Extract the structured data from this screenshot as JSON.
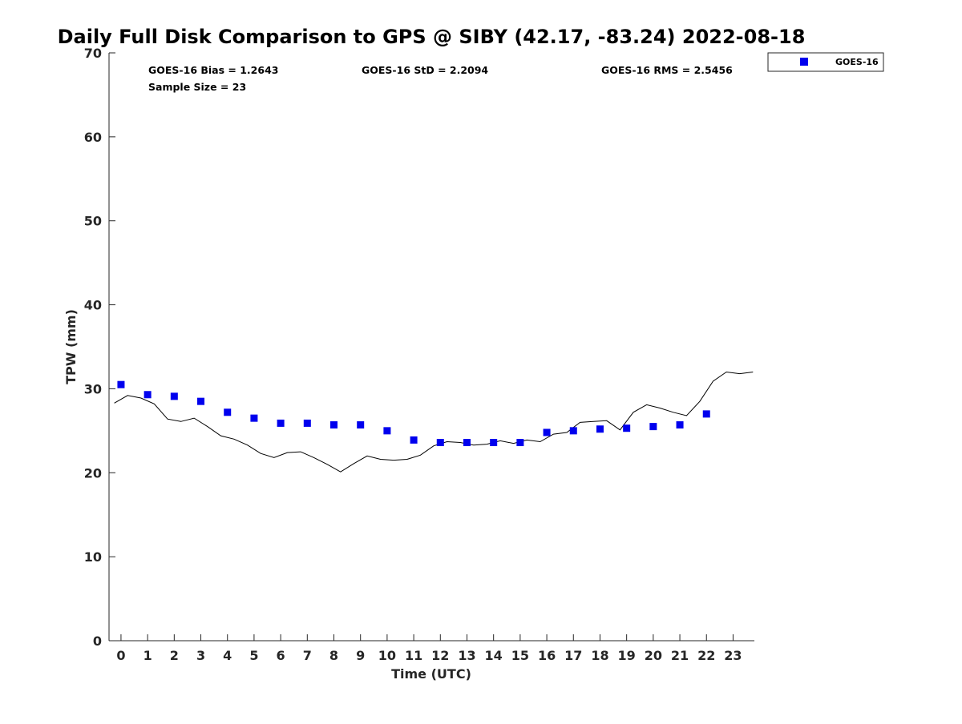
{
  "chart_data": {
    "type": "scatter",
    "title": "Daily Full Disk Comparison to GPS @ SIBY (42.17, -83.24) 2022-08-18",
    "xlabel": "Time (UTC)",
    "ylabel": "TPW (mm)",
    "xlim": [
      -0.45,
      23.8
    ],
    "ylim": [
      0,
      70
    ],
    "x_ticks": [
      0,
      1,
      2,
      3,
      4,
      5,
      6,
      7,
      8,
      9,
      10,
      11,
      12,
      13,
      14,
      15,
      16,
      17,
      18,
      19,
      20,
      21,
      22,
      23
    ],
    "y_ticks": [
      0,
      10,
      20,
      30,
      40,
      50,
      60,
      70
    ],
    "grid": false,
    "legend_position": "top-right, outside plot",
    "series": [
      {
        "name": "GOES-16",
        "marker": "square",
        "color": "#0000ee",
        "x": [
          0,
          1,
          2,
          3,
          4,
          5,
          6,
          7,
          8,
          9,
          10,
          11,
          12,
          13,
          14,
          15,
          16,
          17,
          18,
          19,
          20,
          21,
          22
        ],
        "y": [
          30.5,
          29.3,
          29.1,
          28.5,
          27.2,
          26.5,
          25.9,
          25.9,
          25.7,
          25.7,
          25.0,
          23.9,
          23.6,
          23.6,
          23.6,
          23.6,
          24.8,
          25.0,
          25.2,
          25.3,
          25.5,
          25.7,
          27.0
        ]
      },
      {
        "marker": "line",
        "color": "#000000",
        "x": [
          -0.25,
          0.25,
          0.75,
          1.25,
          1.75,
          2.25,
          2.75,
          3.25,
          3.75,
          4.25,
          4.75,
          5.25,
          5.75,
          6.25,
          6.75,
          7.25,
          7.75,
          8.25,
          8.75,
          9.25,
          9.75,
          10.25,
          10.75,
          11.25,
          11.75,
          12.25,
          12.75,
          13.25,
          13.75,
          14.25,
          14.75,
          15.25,
          15.75,
          16.25,
          16.75,
          17.25,
          17.75,
          18.25,
          18.75,
          19.25,
          19.75,
          20.25,
          20.75,
          21.25,
          21.75,
          22.25,
          22.75,
          23.25,
          23.75
        ],
        "y": [
          28.3,
          29.2,
          28.9,
          28.2,
          26.4,
          26.1,
          26.5,
          25.5,
          24.4,
          24.0,
          23.3,
          22.3,
          21.8,
          22.4,
          22.5,
          21.8,
          21.0,
          20.1,
          21.1,
          22.0,
          21.6,
          21.5,
          21.6,
          22.1,
          23.2,
          23.7,
          23.6,
          23.3,
          23.4,
          23.8,
          23.5,
          23.9,
          23.7,
          24.6,
          24.8,
          26.0,
          26.1,
          26.2,
          25.1,
          27.2,
          28.1,
          27.7,
          27.2,
          26.8,
          28.5,
          30.9,
          32.0,
          31.8,
          32.0
        ]
      }
    ],
    "annotations": [
      "GOES-16 Bias = 1.2643",
      "GOES-16 StD = 2.2094",
      "GOES-16 RMS = 2.5456",
      "Sample Size = 23"
    ]
  },
  "colors": {
    "marker": "#0000ee",
    "line": "#000000",
    "axis": "#262626"
  }
}
